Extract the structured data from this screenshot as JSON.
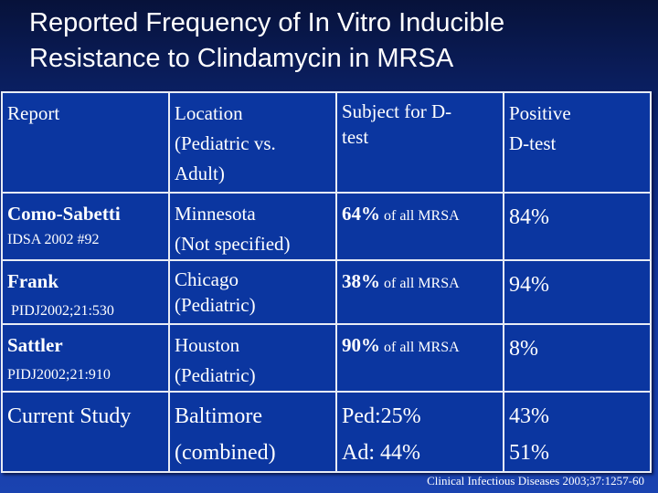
{
  "title_line1": "Reported Frequency of In Vitro Inducible",
  "title_line2": "Resistance to Clindamycin in MRSA",
  "table": {
    "headers": [
      "Report",
      "Location (Pediatric vs. Adult)",
      "Subject for D-test",
      "Positive D-test"
    ],
    "header_lines": {
      "location": [
        "Location",
        "(Pediatric vs.",
        "Adult)"
      ],
      "subject": [
        "Subject for D-",
        "test"
      ],
      "positive": [
        "Positive",
        "D-test"
      ]
    },
    "rows": [
      {
        "report": "Como-Sabetti",
        "ref": "IDSA 2002 #92",
        "location": [
          "Minnesota",
          "(Not specified)"
        ],
        "subject_pct": "64%",
        "subject_text": " of all MRSA",
        "positive": "84%"
      },
      {
        "report": "Frank",
        "ref": "PIDJ2002;21:530",
        "location": [
          "Chicago",
          "(Pediatric)"
        ],
        "subject_pct": "38%",
        "subject_text": " of all MRSA",
        "positive": "94%"
      },
      {
        "report": "Sattler",
        "ref": "PIDJ2002;21:910",
        "location": [
          "Houston",
          "(Pediatric)"
        ],
        "subject_pct": "90%",
        "subject_text": " of all MRSA",
        "positive": "8%"
      }
    ],
    "current": {
      "report": "Current Study",
      "location": [
        "Baltimore",
        "(combined)"
      ],
      "subject": [
        "Ped:25%",
        "Ad: 44%"
      ],
      "positive": [
        "43%",
        "51%"
      ]
    }
  },
  "citation": "Clinical Infectious Diseases  2003;37:1257-60"
}
